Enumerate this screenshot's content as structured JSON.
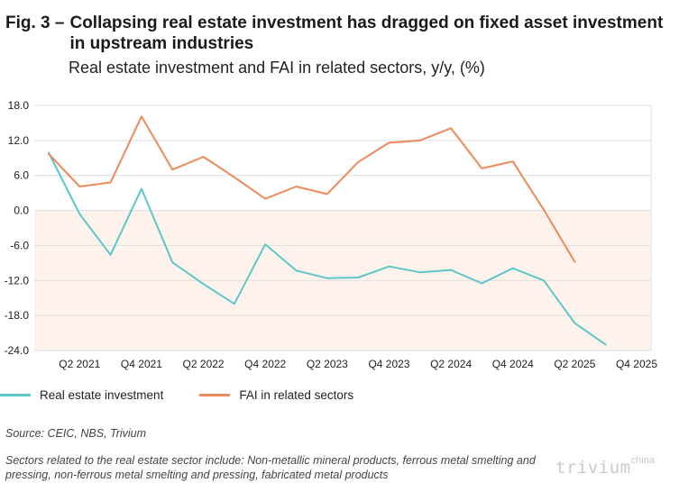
{
  "header": {
    "prefix": "Fig. 3 –",
    "title": "Collapsing real estate investment has dragged on fixed asset investment in upstream industries",
    "subtitle": "Real estate investment and FAI in related sectors, y/y, (%)"
  },
  "chart_data": {
    "type": "line",
    "x": [
      "Q1 2021",
      "Q2 2021",
      "Q3 2021",
      "Q4 2021",
      "Q1 2022",
      "Q2 2022",
      "Q3 2022",
      "Q4 2022",
      "Q1 2023",
      "Q2 2023",
      "Q3 2023",
      "Q4 2023",
      "Q1 2024",
      "Q2 2024",
      "Q3 2024",
      "Q4 2024",
      "Q1 2025",
      "Q2 2025",
      "Q3 2025",
      "Q4 2025"
    ],
    "x_tick_labels": [
      "Q2 2021",
      "Q4 2021",
      "Q2 2022",
      "Q4 2022",
      "Q2 2023",
      "Q4 2023",
      "Q2 2024",
      "Q4 2024",
      "Q2 2025",
      "Q4 2025"
    ],
    "series": [
      {
        "name": "Real estate investment",
        "color": "#5cc7c8",
        "values": [
          9.9,
          -0.6,
          -7.6,
          3.7,
          -8.9,
          -12.6,
          -16.0,
          -5.8,
          -10.3,
          -11.6,
          -11.5,
          -9.6,
          -10.6,
          -10.2,
          -12.5,
          -9.9,
          -12.0,
          -19.3,
          -23.0,
          null
        ]
      },
      {
        "name": "FAI in related sectors",
        "color": "#ee8a5a",
        "values": [
          9.7,
          4.1,
          4.8,
          16.1,
          7.0,
          9.2,
          5.7,
          2.0,
          4.1,
          2.8,
          8.3,
          11.6,
          12.0,
          14.1,
          7.2,
          8.4,
          0.1,
          -8.8,
          null,
          null
        ]
      }
    ],
    "yticks": [
      "18.0",
      "12.0",
      "6.0",
      "0.0",
      "-6.0",
      "-12.0",
      "-18.0",
      "-24.0"
    ],
    "ylim": [
      -24,
      18
    ],
    "grid": true,
    "negative_shading_color": "#fdf3ec",
    "legend_position": "bottom-left"
  },
  "legend": [
    {
      "label": "Real estate investment",
      "color": "#5cc7c8"
    },
    {
      "label": "FAI in related sectors",
      "color": "#ee8a5a"
    }
  ],
  "footer": {
    "source": "Source: CEIC, NBS, Trivium",
    "note": "Sectors related to the real estate sector include: Non-metallic mineral products, ferrous metal smelting and pressing, non-ferrous metal smelting and pressing, fabricated metal products",
    "brand_main": "trivium",
    "brand_sup": "china"
  }
}
